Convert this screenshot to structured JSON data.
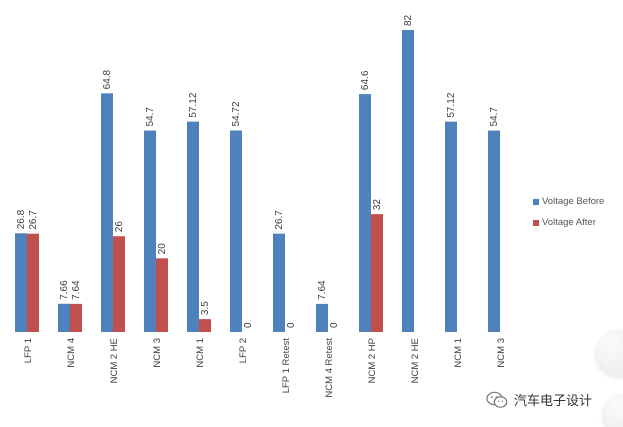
{
  "chart_data": {
    "type": "bar",
    "categories": [
      "LFP 1",
      "NCM 4",
      "NCM 2 HE",
      "NCM 3",
      "NCM 1",
      "LFP 2",
      "LFP 1 Retest",
      "NCM 4 Retest",
      "NCM 2 HP",
      "NCM 2 HE",
      "NCM 1",
      "NCM 3"
    ],
    "series": [
      {
        "name": "Voltage Before",
        "color": "#4f81bd",
        "values": [
          26.8,
          7.66,
          64.8,
          54.7,
          57.12,
          54.72,
          26.7,
          7.64,
          64.6,
          82,
          57.12,
          54.7
        ],
        "labels": [
          "26.8",
          "7.66",
          "64.8",
          "54.7",
          "57.12",
          "54.72",
          "26.7",
          "7.64",
          "64.6",
          "82",
          "57.12",
          "54.7"
        ]
      },
      {
        "name": "Voltage After",
        "color": "#c0504d",
        "values": [
          26.7,
          7.64,
          26,
          20,
          3.5,
          0,
          0,
          0,
          32,
          null,
          null,
          null
        ],
        "labels": [
          "26.7",
          "7.64",
          "26",
          "20",
          "3.5",
          "0",
          "0",
          "0",
          "32",
          null,
          null,
          null
        ]
      }
    ],
    "ylim": [
      0,
      82
    ],
    "grid": false,
    "legend_position": "right"
  },
  "watermark": {
    "text": "汽车电子设计",
    "icon": "wechat-icon"
  }
}
